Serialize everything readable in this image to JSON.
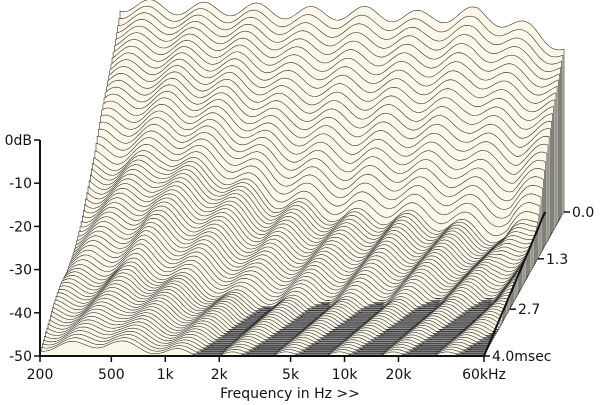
{
  "chart_data": {
    "type": "waterfall-3d",
    "xlabel": "Frequency in Hz >>",
    "x_ticks": [
      "200",
      "500",
      "1k",
      "2k",
      "5k",
      "10k",
      "20k",
      "60kHz"
    ],
    "x_tick_values": [
      200,
      500,
      1000,
      2000,
      5000,
      10000,
      20000,
      60000
    ],
    "xlim": [
      200,
      60000
    ],
    "x_scale": "log",
    "y_ticks": [
      "0dB",
      "-10",
      "-20",
      "-30",
      "-40",
      "-50"
    ],
    "y_tick_values": [
      0,
      -10,
      -20,
      -30,
      -40,
      -50
    ],
    "ylim": [
      -50,
      0
    ],
    "z_ticks": [
      "0.0",
      "1.3",
      "2.7",
      "4.0msec"
    ],
    "z_tick_values": [
      0.0,
      1.3,
      2.7,
      4.0
    ],
    "zlim": [
      0.0,
      4.0
    ],
    "series": [
      {
        "time_ms": 0.0,
        "freq_hz": [
          200,
          500,
          1000,
          2000,
          5000,
          10000,
          20000,
          40000,
          60000
        ],
        "level_db": [
          -2,
          -3,
          -3,
          -4,
          -4,
          -5,
          -4,
          -8,
          -12
        ]
      },
      {
        "time_ms": 1.3,
        "freq_hz": [
          200,
          500,
          1000,
          2000,
          5000,
          10000,
          20000,
          40000,
          60000
        ],
        "level_db": [
          -28,
          -26,
          -30,
          -36,
          -40,
          -40,
          -42,
          -45,
          -40
        ]
      },
      {
        "time_ms": 2.7,
        "freq_hz": [
          200,
          500,
          1000,
          2000,
          5000,
          10000,
          20000,
          40000,
          60000
        ],
        "level_db": [
          -42,
          -40,
          -44,
          -48,
          -49,
          -49,
          -49,
          -49,
          -48
        ]
      },
      {
        "time_ms": 4.0,
        "freq_hz": [
          200,
          500,
          1000,
          2000,
          5000,
          10000,
          20000,
          40000,
          60000
        ],
        "level_db": [
          -48,
          -47,
          -49,
          -50,
          -50,
          -50,
          -50,
          -50,
          -50
        ]
      }
    ],
    "colors": {
      "floor": "#8c8c8c",
      "floor_lines": "#5a5a5a",
      "surface": "#fbf8ea",
      "surface_lines": "#222222",
      "axis": "#111111"
    }
  }
}
